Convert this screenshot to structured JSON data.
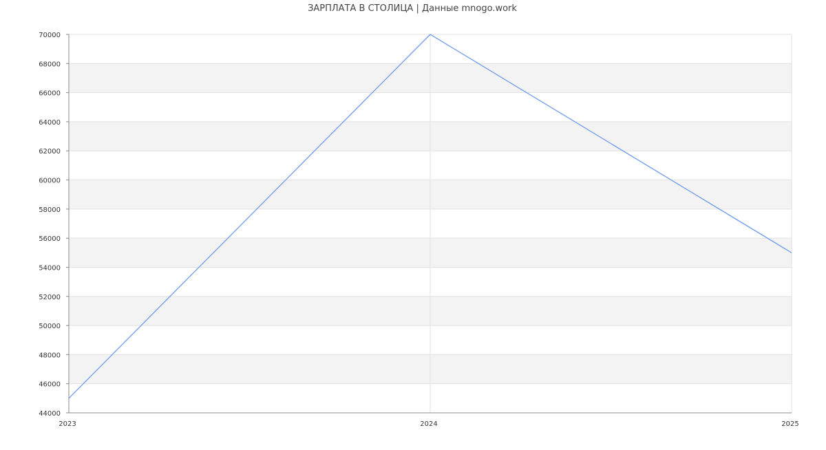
{
  "chart_data": {
    "type": "line",
    "title": "ЗАРПЛАТА В СТОЛИЦА | Данные mnogo.work",
    "x": [
      "2023",
      "2024",
      "2025"
    ],
    "series": [
      {
        "values": [
          45000,
          70000,
          55000
        ]
      }
    ],
    "ylim": [
      44000,
      70000
    ],
    "ytick_step": 2000,
    "yticks": [
      "44000",
      "46000",
      "48000",
      "50000",
      "52000",
      "54000",
      "56000",
      "58000",
      "60000",
      "62000",
      "64000",
      "66000",
      "68000",
      "70000"
    ],
    "grid": true,
    "alternating_bands": true,
    "colors": {
      "line": "#6f9cf0",
      "band": "#f3f3f3",
      "grid": "#e2e2e2",
      "axis": "#888888",
      "text": "#333333"
    }
  }
}
